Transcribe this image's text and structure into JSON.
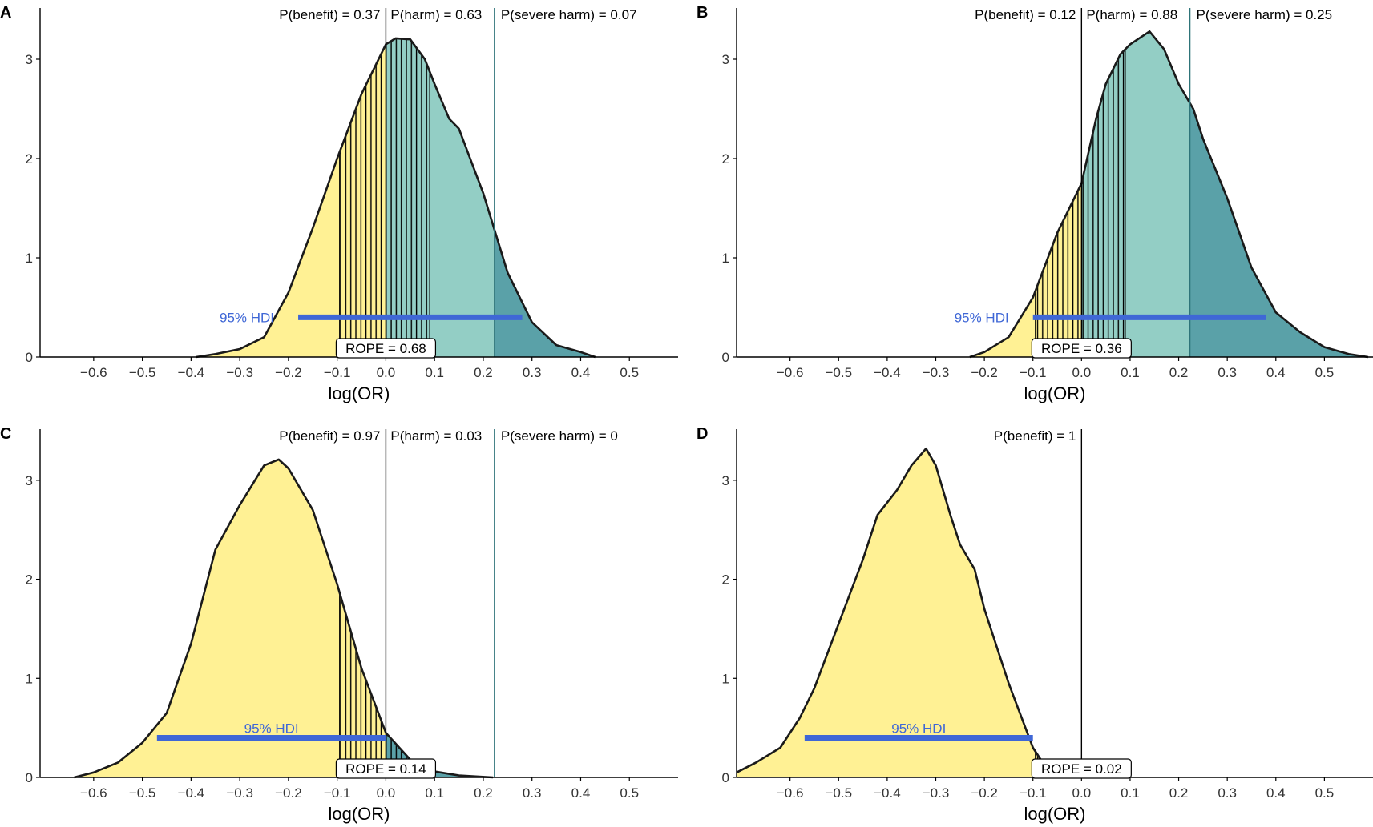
{
  "colors": {
    "benefit_fill": "#FFF194",
    "harm_fill": "#93CEC5",
    "severe_harm_fill": "#5AA1A8",
    "hdi": "#3F67D6",
    "density_line": "#1a1a1a",
    "severe_line": "#2E7479"
  },
  "common": {
    "xlabel": "log(OR)",
    "hdi_label": "95% HDI",
    "xticks": [
      "−0.6",
      "−0.5",
      "−0.4",
      "−0.3",
      "−0.2",
      "−0.1",
      "0.0",
      "0.1",
      "0.2",
      "0.3",
      "0.4",
      "0.5"
    ],
    "yticks": [
      "0",
      "1",
      "2",
      "3"
    ]
  },
  "chart_data": [
    {
      "type": "area",
      "panel": "A",
      "xlabel": "log(OR)",
      "xlim": [
        -0.71,
        0.6
      ],
      "ylim": [
        0,
        3.5
      ],
      "rope": [
        -0.095,
        0.09
      ],
      "severe_threshold": 0.223,
      "hdi": [
        -0.18,
        0.28
      ],
      "annotations": {
        "benefit": "P(benefit) = 0.37",
        "harm": "P(harm) = 0.63",
        "severe": "P(severe harm) = 0.07",
        "rope": "ROPE = 0.68"
      },
      "density": {
        "x": [
          -0.39,
          -0.35,
          -0.3,
          -0.25,
          -0.2,
          -0.15,
          -0.1,
          -0.05,
          0.0,
          0.02,
          0.05,
          0.08,
          0.1,
          0.13,
          0.15,
          0.2,
          0.25,
          0.3,
          0.35,
          0.4,
          0.43
        ],
        "y": [
          0.0,
          0.03,
          0.08,
          0.2,
          0.65,
          1.3,
          2.0,
          2.65,
          3.15,
          3.21,
          3.2,
          3.0,
          2.75,
          2.4,
          2.3,
          1.65,
          0.85,
          0.35,
          0.12,
          0.05,
          0.0
        ]
      }
    },
    {
      "type": "area",
      "panel": "B",
      "xlabel": "log(OR)",
      "xlim": [
        -0.71,
        0.6
      ],
      "ylim": [
        0,
        3.5
      ],
      "rope": [
        -0.095,
        0.09
      ],
      "severe_threshold": 0.223,
      "hdi": [
        -0.1,
        0.38
      ],
      "annotations": {
        "benefit": "P(benefit) = 0.12",
        "harm": "P(harm) = 0.88",
        "severe": "P(severe harm) = 0.25",
        "rope": "ROPE = 0.36"
      },
      "density": {
        "x": [
          -0.23,
          -0.2,
          -0.15,
          -0.1,
          -0.05,
          0.0,
          0.03,
          0.05,
          0.08,
          0.1,
          0.14,
          0.17,
          0.2,
          0.23,
          0.25,
          0.3,
          0.35,
          0.4,
          0.45,
          0.5,
          0.55,
          0.59
        ],
        "y": [
          0.0,
          0.05,
          0.2,
          0.6,
          1.25,
          1.75,
          2.4,
          2.75,
          3.05,
          3.15,
          3.28,
          3.1,
          2.75,
          2.5,
          2.2,
          1.6,
          0.9,
          0.45,
          0.25,
          0.1,
          0.03,
          0.0
        ]
      }
    },
    {
      "type": "area",
      "panel": "C",
      "xlabel": "log(OR)",
      "xlim": [
        -0.71,
        0.6
      ],
      "ylim": [
        0,
        3.5
      ],
      "rope": [
        -0.095,
        0.09
      ],
      "severe_threshold": 0.223,
      "hdi": [
        -0.47,
        0.0
      ],
      "annotations": {
        "benefit": "P(benefit) = 0.97",
        "harm": "P(harm) = 0.03",
        "severe": "P(severe harm) = 0",
        "rope": "ROPE = 0.14"
      },
      "density": {
        "x": [
          -0.64,
          -0.6,
          -0.55,
          -0.5,
          -0.45,
          -0.4,
          -0.35,
          -0.3,
          -0.25,
          -0.22,
          -0.2,
          -0.15,
          -0.1,
          -0.05,
          0.0,
          0.05,
          0.1,
          0.15,
          0.22
        ],
        "y": [
          0.0,
          0.05,
          0.15,
          0.35,
          0.65,
          1.35,
          2.3,
          2.75,
          3.15,
          3.21,
          3.12,
          2.7,
          1.95,
          1.1,
          0.45,
          0.18,
          0.06,
          0.02,
          0.0
        ]
      }
    },
    {
      "type": "area",
      "panel": "D",
      "xlabel": "log(OR)",
      "xlim": [
        -0.71,
        0.6
      ],
      "ylim": [
        0,
        3.5
      ],
      "rope": [
        -0.095,
        0.09
      ],
      "severe_threshold": null,
      "hdi": [
        -0.57,
        -0.1
      ],
      "annotations": {
        "benefit": "P(benefit) = 1",
        "harm": "",
        "severe": "",
        "rope": "ROPE = 0.02"
      },
      "density": {
        "x": [
          -0.71,
          -0.67,
          -0.62,
          -0.58,
          -0.55,
          -0.5,
          -0.45,
          -0.42,
          -0.38,
          -0.35,
          -0.32,
          -0.3,
          -0.27,
          -0.25,
          -0.22,
          -0.2,
          -0.15,
          -0.1,
          -0.06
        ],
        "y": [
          0.05,
          0.15,
          0.3,
          0.6,
          0.9,
          1.55,
          2.2,
          2.65,
          2.9,
          3.15,
          3.32,
          3.15,
          2.65,
          2.35,
          2.1,
          1.7,
          0.95,
          0.3,
          0.0
        ]
      }
    }
  ],
  "panels": [
    {
      "letter": "A"
    },
    {
      "letter": "B"
    },
    {
      "letter": "C"
    },
    {
      "letter": "D"
    }
  ]
}
